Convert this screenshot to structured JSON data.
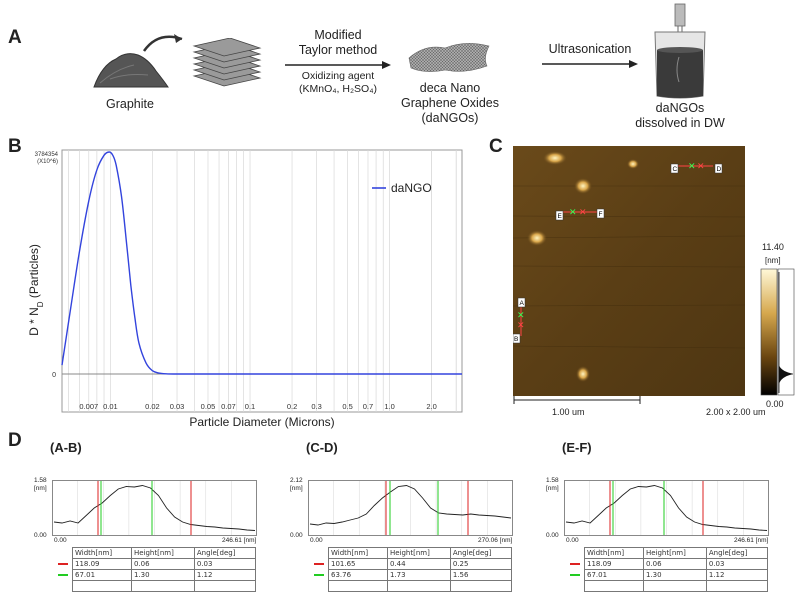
{
  "panel_labels": {
    "a": "A",
    "b": "B",
    "c": "C",
    "d": "D"
  },
  "panel_a": {
    "graphite": "Graphite",
    "arrow1_top": [
      "Modified",
      "Taylor method"
    ],
    "arrow1_bottom": [
      "Oxidizing agent",
      "(KMnO₄, H₂SO₄)"
    ],
    "product": [
      "deca Nano",
      "Graphene Oxides",
      "(daNGOs)"
    ],
    "arrow2": "Ultrasonication",
    "final": [
      "daNGOs",
      "dissolved in DW"
    ]
  },
  "panel_b": {
    "ylabel": "D * N_D (Particles)",
    "ylabel_main": "D  *  N",
    "ylabel_sub": "D",
    "ylabel_end": "  (Particles)",
    "ymax_label": "3784354",
    "yscale_label": "(X10^6)",
    "yzero_label": "0",
    "xlabel": "Particle Diameter (Microns)",
    "legend": "daNGO",
    "line_color": "#3344dd",
    "chart_data": {
      "type": "line",
      "xscale": "log",
      "xlim": [
        0.0045,
        3.3
      ],
      "x_ticks": [
        0.007,
        0.01,
        0.02,
        0.03,
        0.05,
        0.07,
        0.1,
        0.2,
        0.3,
        0.5,
        0.7,
        1.0,
        2.0
      ],
      "x_tick_labels": [
        "0.007",
        "0.01",
        "0.02",
        "0.03",
        "0.05",
        "0.07",
        "0.1",
        "0.2",
        "0.3",
        "0.5",
        "0.7",
        "1.0",
        "2.0"
      ],
      "series": [
        {
          "name": "daNGO",
          "x": [
            0.0045,
            0.0052,
            0.006,
            0.007,
            0.008,
            0.009,
            0.0098,
            0.0104,
            0.011,
            0.012,
            0.013,
            0.014,
            0.015,
            0.016,
            0.018,
            0.02,
            0.022,
            0.025,
            0.03,
            0.05,
            0.1,
            1.0,
            3.3
          ],
          "y": [
            0.04,
            0.3,
            0.55,
            0.78,
            0.92,
            0.985,
            1.0,
            0.985,
            0.94,
            0.8,
            0.6,
            0.4,
            0.25,
            0.14,
            0.05,
            0.015,
            0.005,
            0.001,
            0,
            0,
            0,
            0,
            0
          ]
        }
      ]
    }
  },
  "panel_c": {
    "scale_max": "11.40",
    "scale_unit": "[nm]",
    "scale_min": "0.00",
    "scalebar": "1.00 um",
    "size": "2.00 x 2.00 um",
    "markers": {
      "a": "A",
      "b": "B",
      "c": "C",
      "d": "D",
      "e": "E",
      "f": "F"
    }
  },
  "panel_d": {
    "profiles": [
      {
        "title": "(A-B)",
        "ymax": "1.58",
        "unit": "[nm]",
        "ymin": "0.00",
        "xmin": "0.00",
        "xmax": "246.61 [nm]",
        "headers": [
          "Width[nm]",
          "Height[nm]",
          "Angle[deg]"
        ],
        "rows": [
          [
            "118.09",
            "0.06",
            "0.03"
          ],
          [
            "67.01",
            "1.30",
            "1.12"
          ]
        ],
        "profile": [
          0.22,
          0.2,
          0.24,
          0.2,
          0.35,
          0.5,
          0.6,
          0.75,
          0.88,
          0.93,
          0.92,
          0.95,
          0.9,
          0.75,
          0.5,
          0.32,
          0.22,
          0.17,
          0.15,
          0.13,
          0.12,
          0.1,
          0.09,
          0.08,
          0.06,
          0.05
        ]
      },
      {
        "title": "(C-D)",
        "ymax": "2.12",
        "unit": "[nm]",
        "ymin": "0.00",
        "xmin": "0.00",
        "xmax": "270.06 [nm]",
        "headers": [
          "Width[nm]",
          "Height[nm]",
          "Angle[deg]"
        ],
        "rows": [
          [
            "101.65",
            "0.44",
            "0.25"
          ],
          [
            "63.76",
            "1.73",
            "1.56"
          ]
        ],
        "profile": [
          0.18,
          0.16,
          0.2,
          0.19,
          0.22,
          0.26,
          0.3,
          0.38,
          0.55,
          0.7,
          0.82,
          0.93,
          0.95,
          0.88,
          0.7,
          0.5,
          0.4,
          0.38,
          0.37,
          0.36,
          0.38,
          0.36,
          0.35,
          0.34,
          0.32,
          0.3
        ]
      },
      {
        "title": "(E-F)",
        "ymax": "1.58",
        "unit": "[nm]",
        "ymin": "0.00",
        "xmin": "0.00",
        "xmax": "246.61 [nm]",
        "headers": [
          "Width[nm]",
          "Height[nm]",
          "Angle[deg]"
        ],
        "rows": [
          [
            "118.09",
            "0.06",
            "0.03"
          ],
          [
            "67.01",
            "1.30",
            "1.12"
          ]
        ],
        "profile": [
          0.22,
          0.2,
          0.24,
          0.2,
          0.35,
          0.5,
          0.6,
          0.75,
          0.88,
          0.93,
          0.92,
          0.95,
          0.9,
          0.75,
          0.5,
          0.32,
          0.22,
          0.17,
          0.15,
          0.13,
          0.12,
          0.1,
          0.09,
          0.08,
          0.06,
          0.05
        ]
      }
    ]
  }
}
